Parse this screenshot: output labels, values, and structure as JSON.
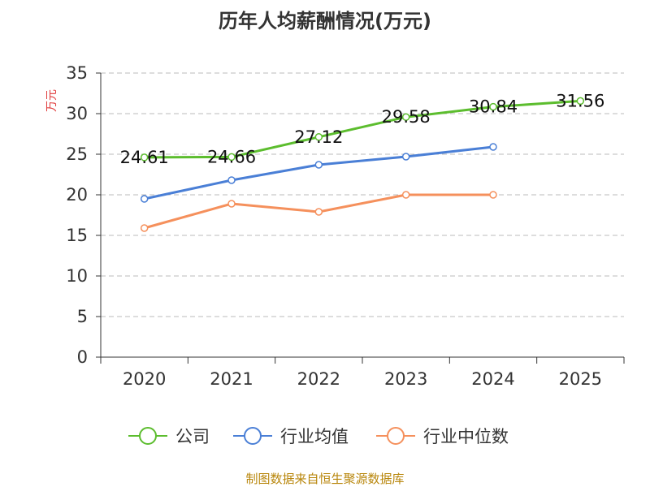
{
  "chart_data": {
    "type": "line",
    "title": "历年人均薪酬情况(万元)",
    "ylabel": "万元",
    "xlabel": "",
    "categories": [
      "2020",
      "2021",
      "2022",
      "2023",
      "2024",
      "2025"
    ],
    "ylim": [
      0,
      35
    ],
    "yticks": [
      0,
      5,
      10,
      15,
      20,
      25,
      30,
      35
    ],
    "grid": true,
    "legend_position": "bottom",
    "series": [
      {
        "name": "公司",
        "color": "#5cbd2e",
        "values": [
          24.61,
          24.66,
          27.12,
          29.58,
          30.84,
          31.56
        ],
        "labels": [
          "24.61",
          "24.66",
          "27.12",
          "29.58",
          "30.84",
          "31.56"
        ]
      },
      {
        "name": "行业均值",
        "color": "#4a7fd6",
        "values": [
          19.5,
          21.8,
          23.7,
          24.7,
          25.9,
          null
        ]
      },
      {
        "name": "行业中位数",
        "color": "#f5905c",
        "values": [
          15.9,
          18.9,
          17.9,
          20.0,
          20.0,
          null
        ]
      }
    ]
  },
  "source": "制图数据来自恒生聚源数据库"
}
